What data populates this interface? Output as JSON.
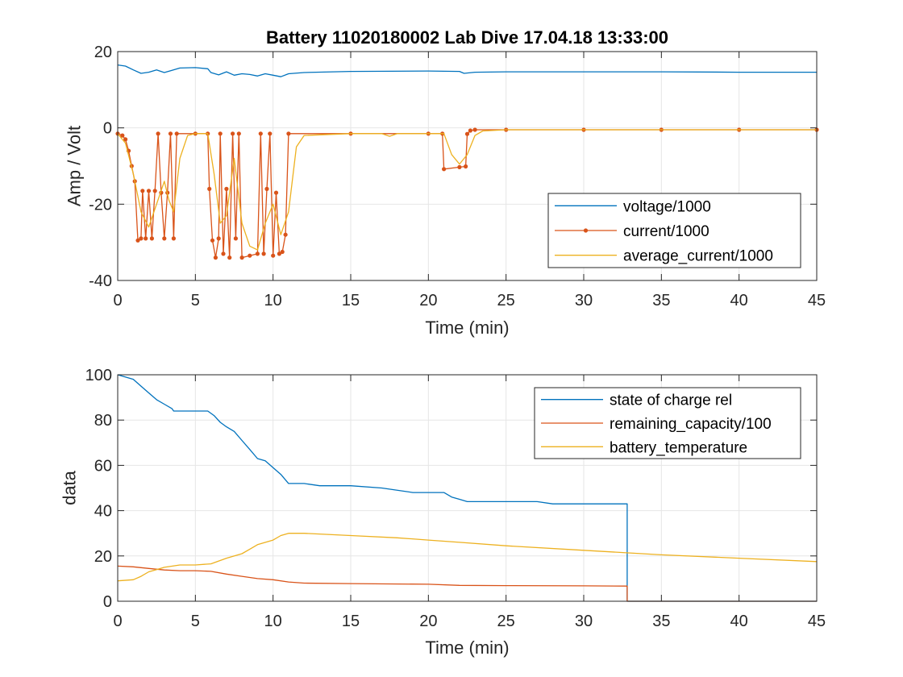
{
  "chart_data": [
    {
      "type": "line",
      "title": "Battery 11020180002 Lab Dive 17.04.18 13:33:00",
      "xlabel": "Time (min)",
      "ylabel": "Amp / Volt",
      "xlim": [
        0,
        45
      ],
      "ylim": [
        -40,
        20
      ],
      "xticks": [
        0,
        5,
        10,
        15,
        20,
        25,
        30,
        35,
        40,
        45
      ],
      "yticks": [
        -40,
        -20,
        0,
        20
      ],
      "grid": true,
      "legend_position": "bottom-right",
      "series": [
        {
          "name": "voltage/1000",
          "color": "#0072BD",
          "marker": false,
          "points": [
            [
              0,
              16.5
            ],
            [
              0.5,
              16.2
            ],
            [
              1,
              15.2
            ],
            [
              1.5,
              14.3
            ],
            [
              2,
              14.6
            ],
            [
              2.5,
              15.2
            ],
            [
              3,
              14.5
            ],
            [
              3.5,
              15.1
            ],
            [
              4,
              15.7
            ],
            [
              5,
              15.8
            ],
            [
              5.8,
              15.5
            ],
            [
              6,
              14.5
            ],
            [
              6.5,
              13.9
            ],
            [
              7,
              14.7
            ],
            [
              7.5,
              13.8
            ],
            [
              8,
              14.2
            ],
            [
              8.5,
              14.0
            ],
            [
              9,
              13.6
            ],
            [
              9.5,
              14.2
            ],
            [
              10,
              13.8
            ],
            [
              10.5,
              13.4
            ],
            [
              11,
              14.2
            ],
            [
              12,
              14.5
            ],
            [
              15,
              14.8
            ],
            [
              20,
              14.9
            ],
            [
              22,
              14.8
            ],
            [
              22.3,
              14.3
            ],
            [
              23,
              14.6
            ],
            [
              25,
              14.7
            ],
            [
              30,
              14.7
            ],
            [
              35,
              14.7
            ],
            [
              40,
              14.6
            ],
            [
              45,
              14.6
            ]
          ]
        },
        {
          "name": "current/1000",
          "color": "#D95319",
          "marker": true,
          "points": [
            [
              0,
              -1.5
            ],
            [
              0.3,
              -2
            ],
            [
              0.5,
              -3
            ],
            [
              0.7,
              -6
            ],
            [
              0.9,
              -10
            ],
            [
              1.1,
              -14
            ],
            [
              1.3,
              -29.5
            ],
            [
              1.5,
              -29
            ],
            [
              1.6,
              -16.5
            ],
            [
              1.8,
              -29
            ],
            [
              2.0,
              -16.5
            ],
            [
              2.2,
              -29
            ],
            [
              2.4,
              -16.5
            ],
            [
              2.6,
              -1.5
            ],
            [
              2.8,
              -17
            ],
            [
              3.0,
              -29
            ],
            [
              3.2,
              -17
            ],
            [
              3.4,
              -1.5
            ],
            [
              3.6,
              -29
            ],
            [
              3.8,
              -1.5
            ],
            [
              5,
              -1.5
            ],
            [
              5.8,
              -1.5
            ],
            [
              5.9,
              -16
            ],
            [
              6.1,
              -29.5
            ],
            [
              6.3,
              -34
            ],
            [
              6.5,
              -29
            ],
            [
              6.6,
              -1.5
            ],
            [
              6.8,
              -33
            ],
            [
              7.0,
              -16
            ],
            [
              7.2,
              -34
            ],
            [
              7.4,
              -1.5
            ],
            [
              7.6,
              -29
            ],
            [
              7.8,
              -1.5
            ],
            [
              8.0,
              -34
            ],
            [
              8.5,
              -33.5
            ],
            [
              9.0,
              -33
            ],
            [
              9.2,
              -1.5
            ],
            [
              9.4,
              -33
            ],
            [
              9.6,
              -16
            ],
            [
              9.8,
              -1.5
            ],
            [
              10.0,
              -33.5
            ],
            [
              10.2,
              -17
            ],
            [
              10.4,
              -33
            ],
            [
              10.6,
              -32.5
            ],
            [
              10.8,
              -28
            ],
            [
              11.0,
              -1.5
            ],
            [
              15,
              -1.5
            ],
            [
              20,
              -1.5
            ],
            [
              20.9,
              -1.5
            ],
            [
              21,
              -10.8
            ],
            [
              22,
              -10.3
            ],
            [
              22.4,
              -10.1
            ],
            [
              22.5,
              -1.6
            ],
            [
              22.7,
              -0.7
            ],
            [
              23,
              -0.5
            ],
            [
              25,
              -0.5
            ],
            [
              30,
              -0.5
            ],
            [
              35,
              -0.5
            ],
            [
              40,
              -0.5
            ],
            [
              45,
              -0.5
            ]
          ]
        },
        {
          "name": "average_current/1000",
          "color": "#EDB120",
          "marker": false,
          "points": [
            [
              0,
              -1.5
            ],
            [
              0.5,
              -4
            ],
            [
              1,
              -12
            ],
            [
              1.5,
              -22
            ],
            [
              2,
              -26
            ],
            [
              2.5,
              -20
            ],
            [
              3,
              -14
            ],
            [
              3.3,
              -19
            ],
            [
              3.6,
              -22
            ],
            [
              4,
              -8
            ],
            [
              4.5,
              -2
            ],
            [
              5,
              -1.5
            ],
            [
              5.8,
              -1.5
            ],
            [
              6.2,
              -12
            ],
            [
              6.6,
              -25
            ],
            [
              7,
              -23
            ],
            [
              7.5,
              -8
            ],
            [
              8,
              -25
            ],
            [
              8.5,
              -31
            ],
            [
              9,
              -32
            ],
            [
              9.5,
              -25
            ],
            [
              10,
              -20
            ],
            [
              10.5,
              -28
            ],
            [
              11,
              -22
            ],
            [
              11.5,
              -5
            ],
            [
              12,
              -2
            ],
            [
              15,
              -1.5
            ],
            [
              17,
              -1.5
            ],
            [
              17.5,
              -2.2
            ],
            [
              18,
              -1.5
            ],
            [
              20,
              -1.5
            ],
            [
              21,
              -1.5
            ],
            [
              21.5,
              -7
            ],
            [
              22,
              -9.5
            ],
            [
              22.5,
              -7
            ],
            [
              23,
              -2
            ],
            [
              23.5,
              -0.8
            ],
            [
              25,
              -0.5
            ],
            [
              30,
              -0.5
            ],
            [
              35,
              -0.5
            ],
            [
              40,
              -0.5
            ],
            [
              45,
              -0.5
            ]
          ]
        }
      ]
    },
    {
      "type": "line",
      "title": "",
      "xlabel": "Time (min)",
      "ylabel": "data",
      "xlim": [
        0,
        45
      ],
      "ylim": [
        0,
        100
      ],
      "xticks": [
        0,
        5,
        10,
        15,
        20,
        25,
        30,
        35,
        40,
        45
      ],
      "yticks": [
        0,
        20,
        40,
        60,
        80,
        100
      ],
      "grid": true,
      "legend_position": "top-right",
      "series": [
        {
          "name": "state of charge rel",
          "color": "#0072BD",
          "marker": false,
          "points": [
            [
              0,
              100
            ],
            [
              1,
              98
            ],
            [
              1.5,
              95
            ],
            [
              2,
              92
            ],
            [
              2.5,
              89
            ],
            [
              3,
              87
            ],
            [
              3.5,
              85
            ],
            [
              3.6,
              84
            ],
            [
              4,
              84
            ],
            [
              5,
              84
            ],
            [
              5.8,
              84
            ],
            [
              6.2,
              82
            ],
            [
              6.6,
              79
            ],
            [
              7,
              77
            ],
            [
              7.5,
              75
            ],
            [
              8,
              71
            ],
            [
              8.5,
              67
            ],
            [
              9,
              63
            ],
            [
              9.5,
              62
            ],
            [
              10,
              59
            ],
            [
              10.5,
              56
            ],
            [
              11,
              52
            ],
            [
              12,
              52
            ],
            [
              13,
              51
            ],
            [
              15,
              51
            ],
            [
              17,
              50
            ],
            [
              19,
              48
            ],
            [
              21,
              48
            ],
            [
              21.5,
              46
            ],
            [
              22,
              45
            ],
            [
              22.5,
              44
            ],
            [
              25,
              44
            ],
            [
              27,
              44
            ],
            [
              28,
              43
            ],
            [
              30,
              43
            ],
            [
              32.8,
              43
            ],
            [
              32.8,
              0
            ],
            [
              45,
              0
            ]
          ]
        },
        {
          "name": "remaining_capacity/100",
          "color": "#D95319",
          "marker": false,
          "points": [
            [
              0,
              15.5
            ],
            [
              1,
              15.2
            ],
            [
              2,
              14.5
            ],
            [
              3,
              13.8
            ],
            [
              4,
              13.5
            ],
            [
              5,
              13.5
            ],
            [
              6,
              13.2
            ],
            [
              7,
              12
            ],
            [
              8,
              11
            ],
            [
              9,
              10
            ],
            [
              10,
              9.5
            ],
            [
              11,
              8.5
            ],
            [
              12,
              8
            ],
            [
              15,
              7.8
            ],
            [
              20,
              7.5
            ],
            [
              22,
              7
            ],
            [
              25,
              6.9
            ],
            [
              30,
              6.8
            ],
            [
              32.8,
              6.7
            ],
            [
              32.8,
              0
            ],
            [
              45,
              0
            ]
          ]
        },
        {
          "name": "battery_temperature",
          "color": "#EDB120",
          "marker": false,
          "points": [
            [
              0,
              9
            ],
            [
              1,
              9.5
            ],
            [
              1.5,
              11
            ],
            [
              2,
              13
            ],
            [
              2.5,
              14
            ],
            [
              3,
              15
            ],
            [
              4,
              16
            ],
            [
              5,
              16
            ],
            [
              6,
              16.5
            ],
            [
              7,
              19
            ],
            [
              8,
              21
            ],
            [
              8.5,
              23
            ],
            [
              9,
              25
            ],
            [
              10,
              27
            ],
            [
              10.5,
              29
            ],
            [
              11,
              30
            ],
            [
              12,
              30
            ],
            [
              15,
              29
            ],
            [
              18,
              28
            ],
            [
              20,
              27
            ],
            [
              22,
              26
            ],
            [
              25,
              24.5
            ],
            [
              30,
              22.5
            ],
            [
              35,
              20.5
            ],
            [
              40,
              19
            ],
            [
              45,
              17.5
            ]
          ]
        }
      ]
    }
  ]
}
